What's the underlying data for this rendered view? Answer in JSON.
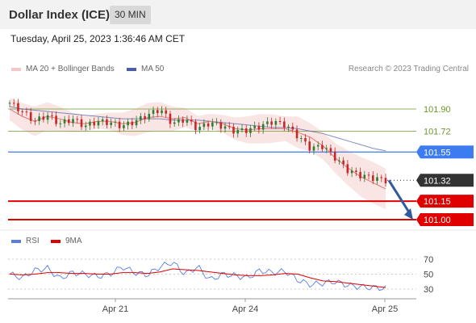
{
  "header": {
    "title": "Dollar Index (ICE)",
    "timeframe": "30 MIN"
  },
  "timestamp": "Tuesday, April 25, 2023 1:36:46 AM CET",
  "legend": {
    "ma20_bb": "MA 20 + Bollinger Bands",
    "ma50": "MA 50",
    "credit": "Research © 2023 Trading Central"
  },
  "rsi_legend": {
    "rsi": "RSI",
    "ma9": "9MA"
  },
  "colors": {
    "bull": "#2e7d32",
    "bear": "#c62828",
    "bb": "#f5c6c6",
    "ma50": "#4a5fa8",
    "support": "#e00000",
    "pivot": "#3d7cf0",
    "resist": "#6a9a2a",
    "rsi": "#5b7de0",
    "ma9": "#e00000",
    "arrow": "#2f5a9c"
  },
  "chart_data": [
    {
      "type": "line",
      "title": "Dollar Index (ICE) 30 MIN",
      "x_tick_labels": [
        "Apr 21",
        "Apr 24",
        "Apr 25"
      ],
      "levels": [
        {
          "value": 101.9,
          "label": "101.90",
          "kind": "resistance"
        },
        {
          "value": 101.72,
          "label": "101.72",
          "kind": "resistance"
        },
        {
          "value": 101.55,
          "label": "101.55",
          "kind": "pivot"
        },
        {
          "value": 101.32,
          "label": "101.32",
          "kind": "last"
        },
        {
          "value": 101.15,
          "label": "101.15",
          "kind": "support"
        },
        {
          "value": 101.0,
          "label": "101.00",
          "kind": "support"
        }
      ],
      "series": [
        {
          "name": "MA 20 + Bollinger Bands",
          "values": [
            101.9,
            101.84,
            101.8,
            101.84,
            101.82,
            101.79,
            101.78,
            101.8,
            101.8,
            101.78,
            101.79,
            101.83,
            101.84,
            101.82,
            101.83,
            101.78,
            101.8,
            101.78,
            101.74,
            101.73,
            101.74,
            101.74,
            101.74,
            101.71,
            101.67,
            101.6,
            101.5,
            101.42,
            101.35,
            101.3,
            101.25
          ]
        },
        {
          "name": "MA 50",
          "values": [
            101.92,
            101.9,
            101.89,
            101.88,
            101.87,
            101.86,
            101.85,
            101.84,
            101.83,
            101.82,
            101.82,
            101.82,
            101.82,
            101.81,
            101.81,
            101.81,
            101.8,
            101.79,
            101.78,
            101.77,
            101.76,
            101.75,
            101.75,
            101.74,
            101.72,
            101.7,
            101.67,
            101.64,
            101.61,
            101.58,
            101.56
          ]
        },
        {
          "name": "Close",
          "values": [
            101.95,
            101.88,
            101.8,
            101.85,
            101.78,
            101.82,
            101.76,
            101.8,
            101.79,
            101.76,
            101.8,
            101.85,
            101.9,
            101.78,
            101.82,
            101.74,
            101.79,
            101.76,
            101.72,
            101.73,
            101.76,
            101.8,
            101.77,
            101.68,
            101.58,
            101.6,
            101.5,
            101.4,
            101.36,
            101.34,
            101.32
          ]
        }
      ],
      "projection": {
        "from": 101.32,
        "to": 101.0
      }
    },
    {
      "type": "line",
      "title": "RSI",
      "ylim": [
        30,
        70
      ],
      "y_ticks": [
        "70",
        "50",
        "30"
      ],
      "series": [
        {
          "name": "RSI",
          "values": [
            50,
            45,
            55,
            58,
            44,
            52,
            50,
            47,
            50,
            60,
            52,
            49,
            60,
            66,
            50,
            60,
            42,
            50,
            48,
            45,
            55,
            52,
            54,
            42,
            36,
            38,
            40,
            35,
            33,
            32,
            31
          ]
        },
        {
          "name": "9MA",
          "values": [
            50,
            49,
            50,
            52,
            52,
            51,
            51,
            50,
            50,
            52,
            52,
            51,
            53,
            57,
            56,
            55,
            53,
            51,
            49,
            48,
            48,
            49,
            51,
            50,
            45,
            41,
            40,
            38,
            36,
            34,
            32
          ]
        }
      ]
    }
  ]
}
